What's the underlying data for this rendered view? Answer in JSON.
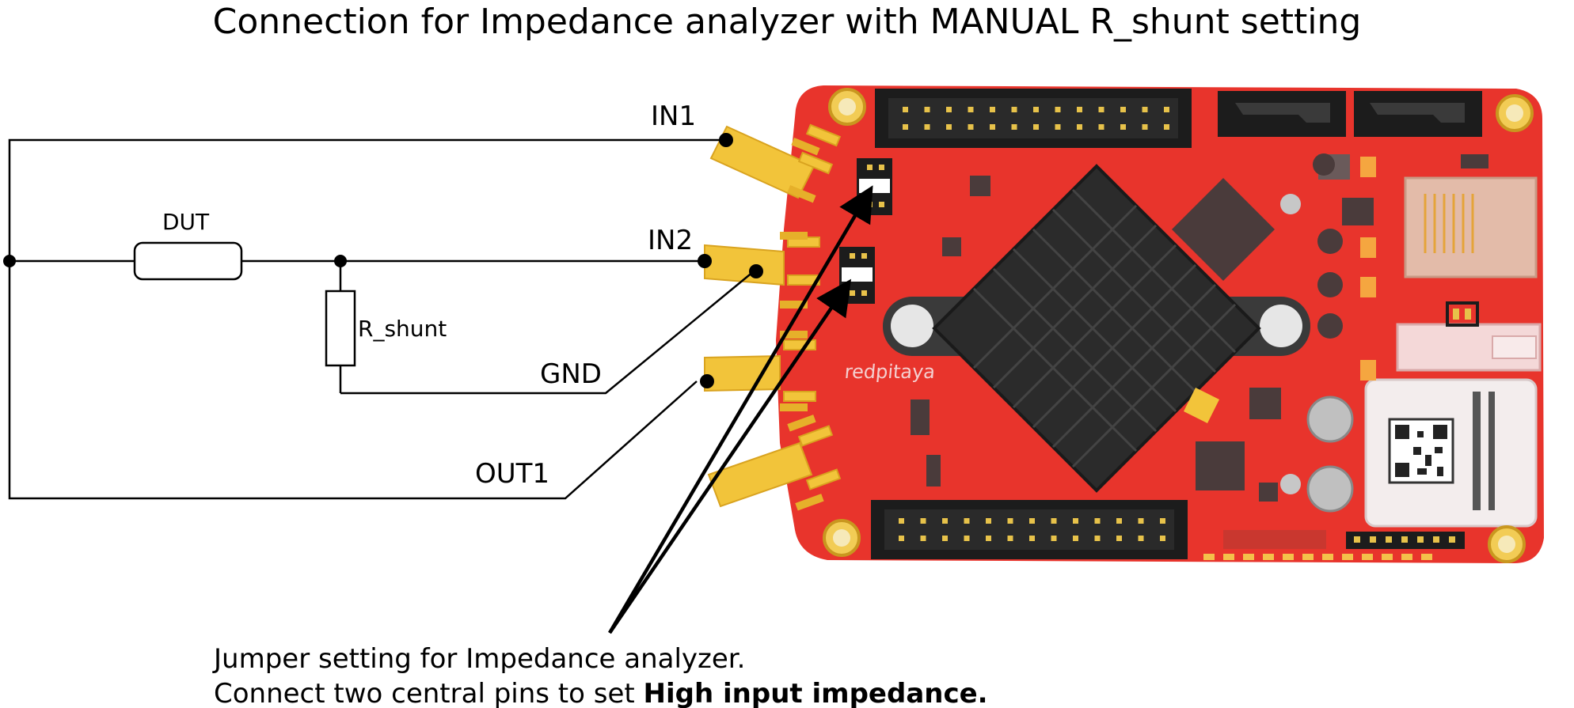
{
  "title": "Connection for Impedance analyzer with MANUAL R_shunt setting",
  "labels": {
    "in1": "IN1",
    "in2": "IN2",
    "gnd": "GND",
    "out1": "OUT1",
    "dut": "DUT",
    "r_shunt": "R_shunt"
  },
  "board": {
    "brand": "redpitaya",
    "colors": {
      "pcb": "#e8342c",
      "connector": "#f2c43a",
      "header": "#1c1c1c",
      "heatsink": "#2b2b2b"
    }
  },
  "note": {
    "line1": "Jumper setting for Impedance analyzer.",
    "line2_prefix": "Connect two central pins to set ",
    "line2_bold": "High input impedance."
  }
}
